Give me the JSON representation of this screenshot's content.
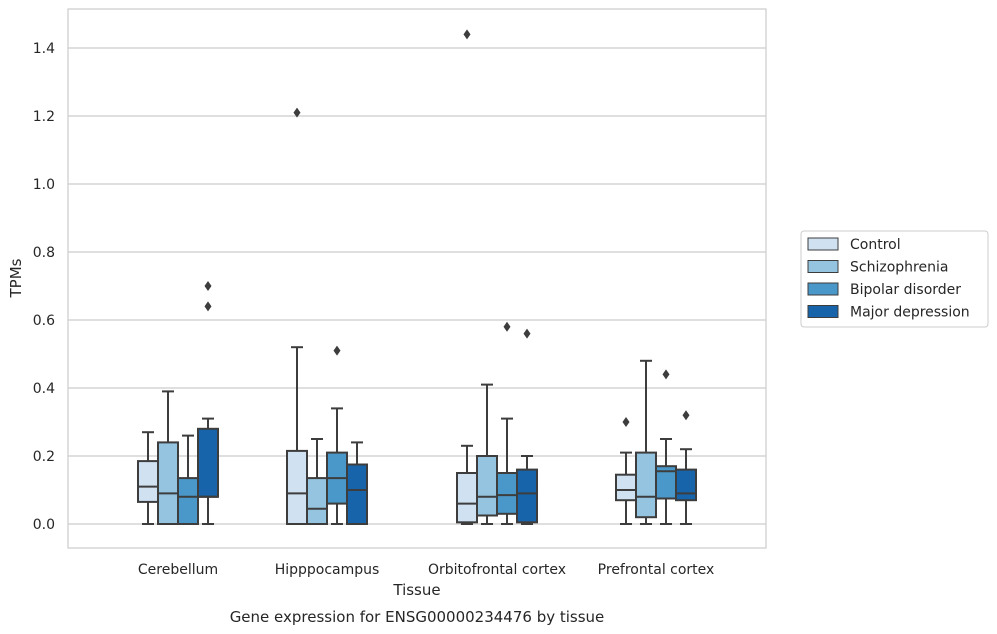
{
  "chart_data": {
    "type": "box",
    "title": "",
    "caption": "Gene expression for ENSG00000234476 by tissue",
    "xlabel": "Tissue",
    "ylabel": "TPMs",
    "ylim": [
      -0.07,
      1.52
    ],
    "yticks": [
      "0.0",
      "0.2",
      "0.4",
      "0.6",
      "0.8",
      "1.0",
      "1.2",
      "1.4"
    ],
    "grid": "horizontal",
    "legend_position": "right",
    "categories": [
      "Cerebellum",
      "Hipppocampus",
      "Orbitofrontal cortex",
      "Prefrontal cortex"
    ],
    "series": [
      {
        "name": "Control",
        "color": "#d0e1f2",
        "boxes": [
          {
            "whislo": 0.0,
            "q1": 0.065,
            "med": 0.11,
            "q3": 0.185,
            "whishi": 0.27,
            "fliers": []
          },
          {
            "whislo": 0.0,
            "q1": 0.0,
            "med": 0.09,
            "q3": 0.215,
            "whishi": 0.52,
            "fliers": [
              1.21
            ]
          },
          {
            "whislo": 0.0,
            "q1": 0.005,
            "med": 0.06,
            "q3": 0.15,
            "whishi": 0.23,
            "fliers": [
              1.44
            ]
          },
          {
            "whislo": 0.0,
            "q1": 0.07,
            "med": 0.1,
            "q3": 0.145,
            "whishi": 0.21,
            "fliers": [
              0.3
            ]
          }
        ]
      },
      {
        "name": "Schizophrenia",
        "color": "#94c4df",
        "boxes": [
          {
            "whislo": 0.0,
            "q1": 0.0,
            "med": 0.09,
            "q3": 0.24,
            "whishi": 0.39,
            "fliers": []
          },
          {
            "whislo": 0.0,
            "q1": 0.0,
            "med": 0.045,
            "q3": 0.135,
            "whishi": 0.25,
            "fliers": []
          },
          {
            "whislo": 0.0,
            "q1": 0.025,
            "med": 0.08,
            "q3": 0.2,
            "whishi": 0.41,
            "fliers": []
          },
          {
            "whislo": 0.0,
            "q1": 0.02,
            "med": 0.08,
            "q3": 0.21,
            "whishi": 0.48,
            "fliers": []
          }
        ]
      },
      {
        "name": "Bipolar disorder",
        "color": "#4a98c9",
        "boxes": [
          {
            "whislo": 0.0,
            "q1": 0.0,
            "med": 0.08,
            "q3": 0.135,
            "whishi": 0.26,
            "fliers": []
          },
          {
            "whislo": 0.0,
            "q1": 0.06,
            "med": 0.135,
            "q3": 0.21,
            "whishi": 0.34,
            "fliers": [
              0.51
            ]
          },
          {
            "whislo": 0.0,
            "q1": 0.03,
            "med": 0.085,
            "q3": 0.15,
            "whishi": 0.31,
            "fliers": [
              0.58
            ]
          },
          {
            "whislo": 0.0,
            "q1": 0.075,
            "med": 0.155,
            "q3": 0.17,
            "whishi": 0.25,
            "fliers": [
              0.44
            ]
          }
        ]
      },
      {
        "name": "Major depression",
        "color": "#1764ab",
        "boxes": [
          {
            "whislo": 0.0,
            "q1": 0.08,
            "med": 0.08,
            "q3": 0.28,
            "whishi": 0.31,
            "fliers": [
              0.64,
              0.7
            ]
          },
          {
            "whislo": 0.0,
            "q1": 0.0,
            "med": 0.1,
            "q3": 0.175,
            "whishi": 0.24,
            "fliers": []
          },
          {
            "whislo": 0.0,
            "q1": 0.005,
            "med": 0.09,
            "q3": 0.16,
            "whishi": 0.2,
            "fliers": [
              0.56
            ]
          },
          {
            "whislo": 0.0,
            "q1": 0.07,
            "med": 0.09,
            "q3": 0.16,
            "whishi": 0.22,
            "fliers": [
              0.32
            ]
          }
        ]
      }
    ]
  }
}
